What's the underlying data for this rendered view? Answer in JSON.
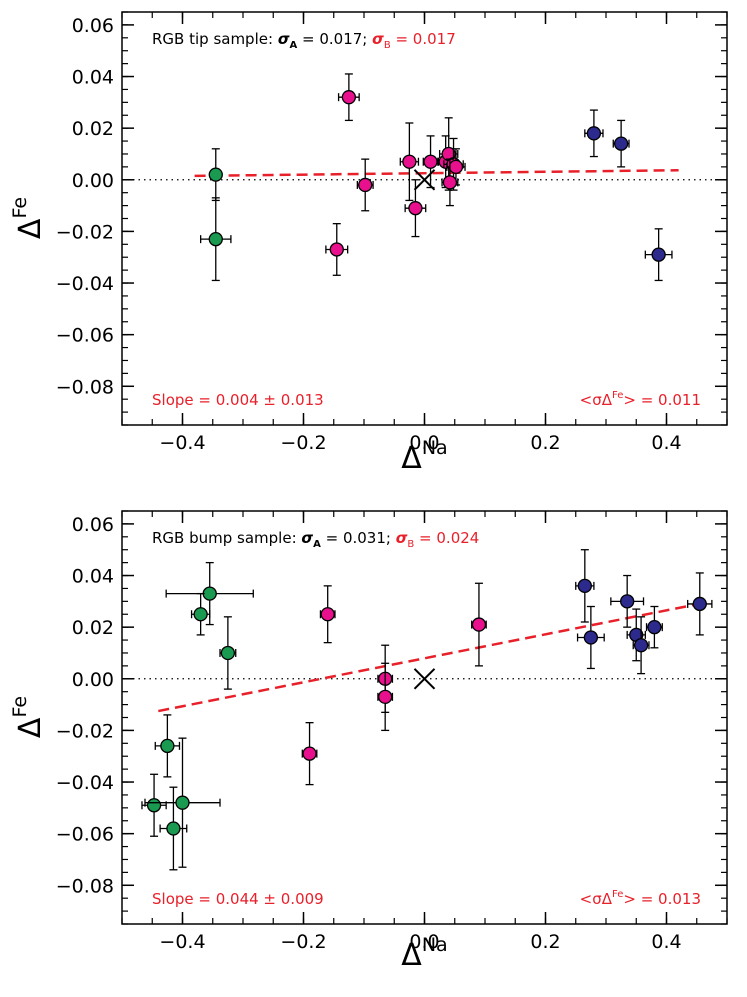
{
  "colors": {
    "magenta": "#e8108c",
    "green": "#1a9a50",
    "navy": "#2c2a8c",
    "red": "#e8202a",
    "black": "#000000"
  },
  "chart_data": [
    {
      "type": "scatter",
      "panel": "top",
      "sample_label": "RGB tip sample:",
      "sigmaA_text": "= 0.017;",
      "sigmaB_text": "= 0.017",
      "slope_label": "Slope =  0.004 ± 0.013",
      "mean_err_label": "= 0.011",
      "xlabel": "Δ^Na",
      "ylabel": "Δ^Fe",
      "xlim": [
        -0.5,
        0.5
      ],
      "ylim": [
        -0.095,
        0.065
      ],
      "x_ticks": [
        -0.4,
        -0.2,
        0.0,
        0.2,
        0.4
      ],
      "x_tick_labels": [
        "−0.4",
        "−0.2",
        "0.0",
        "0.2",
        "0.4"
      ],
      "y_ticks": [
        0.06,
        0.04,
        0.02,
        0.0,
        -0.02,
        -0.04,
        -0.06,
        -0.08
      ],
      "y_tick_labels": [
        "0.06",
        "0.04",
        "0.02",
        "0.00",
        "−0.02",
        "−0.04",
        "−0.06",
        "−0.08"
      ],
      "zero_line": 0.0,
      "fit_line": [
        [
          -0.38,
          0.0015
        ],
        [
          0.42,
          0.0037
        ]
      ],
      "origin_marker": [
        0.0,
        0.0
      ],
      "series": [
        {
          "color_key": "green",
          "points": [
            {
              "x": -0.345,
              "y": 0.002,
              "xerr": 0.007,
              "yerr": 0.01
            },
            {
              "x": -0.345,
              "y": -0.023,
              "xerr": 0.025,
              "yerr": 0.016
            }
          ]
        },
        {
          "color_key": "magenta",
          "points": [
            {
              "x": -0.125,
              "y": 0.032,
              "xerr": 0.017,
              "yerr": 0.009
            },
            {
              "x": -0.145,
              "y": -0.027,
              "xerr": 0.018,
              "yerr": 0.01
            },
            {
              "x": -0.098,
              "y": -0.002,
              "xerr": 0.013,
              "yerr": 0.01
            },
            {
              "x": -0.025,
              "y": 0.007,
              "xerr": 0.015,
              "yerr": 0.015
            },
            {
              "x": -0.015,
              "y": -0.011,
              "xerr": 0.017,
              "yerr": 0.011
            },
            {
              "x": 0.01,
              "y": 0.007,
              "xerr": 0.012,
              "yerr": 0.01
            },
            {
              "x": 0.035,
              "y": 0.007,
              "xerr": 0.012,
              "yerr": 0.01
            },
            {
              "x": 0.04,
              "y": 0.01,
              "xerr": 0.015,
              "yerr": 0.014
            },
            {
              "x": 0.048,
              "y": 0.006,
              "xerr": 0.016,
              "yerr": 0.01
            },
            {
              "x": 0.052,
              "y": 0.005,
              "xerr": 0.015,
              "yerr": 0.007
            },
            {
              "x": 0.042,
              "y": -0.001,
              "xerr": 0.013,
              "yerr": 0.009
            }
          ]
        },
        {
          "color_key": "navy",
          "points": [
            {
              "x": 0.28,
              "y": 0.018,
              "xerr": 0.015,
              "yerr": 0.009
            },
            {
              "x": 0.325,
              "y": 0.014,
              "xerr": 0.013,
              "yerr": 0.009
            },
            {
              "x": 0.387,
              "y": -0.029,
              "xerr": 0.022,
              "yerr": 0.01
            }
          ]
        }
      ]
    },
    {
      "type": "scatter",
      "panel": "bottom",
      "sample_label": "RGB bump sample:",
      "sigmaA_text": "= 0.031;",
      "sigmaB_text": "= 0.024",
      "slope_label": "Slope =  0.044 ± 0.009",
      "mean_err_label": "= 0.013",
      "xlabel": "Δ^Na",
      "ylabel": "Δ^Fe",
      "xlim": [
        -0.5,
        0.5
      ],
      "ylim": [
        -0.095,
        0.065
      ],
      "x_ticks": [
        -0.4,
        -0.2,
        0.0,
        0.2,
        0.4
      ],
      "x_tick_labels": [
        "−0.4",
        "−0.2",
        "0.0",
        "0.2",
        "0.4"
      ],
      "y_ticks": [
        0.06,
        0.04,
        0.02,
        0.0,
        -0.02,
        -0.04,
        -0.06,
        -0.08
      ],
      "y_tick_labels": [
        "0.06",
        "0.04",
        "0.02",
        "0.00",
        "−0.02",
        "−0.04",
        "−0.06",
        "−0.08"
      ],
      "zero_line": 0.0,
      "fit_line": [
        [
          -0.44,
          -0.0125
        ],
        [
          0.46,
          0.0293
        ]
      ],
      "origin_marker": [
        0.0,
        0.0
      ],
      "series": [
        {
          "color_key": "green",
          "points": [
            {
              "x": -0.355,
              "y": 0.033,
              "xerr": 0.072,
              "yerr": 0.012
            },
            {
              "x": -0.37,
              "y": 0.025,
              "xerr": 0.015,
              "yerr": 0.008
            },
            {
              "x": -0.325,
              "y": 0.01,
              "xerr": 0.013,
              "yerr": 0.014
            },
            {
              "x": -0.425,
              "y": -0.026,
              "xerr": 0.02,
              "yerr": 0.012
            },
            {
              "x": -0.447,
              "y": -0.049,
              "xerr": 0.02,
              "yerr": 0.012
            },
            {
              "x": -0.4,
              "y": -0.048,
              "xerr": 0.062,
              "yerr": 0.025
            },
            {
              "x": -0.415,
              "y": -0.058,
              "xerr": 0.022,
              "yerr": 0.016
            }
          ]
        },
        {
          "color_key": "magenta",
          "points": [
            {
              "x": -0.16,
              "y": 0.025,
              "xerr": 0.012,
              "yerr": 0.011
            },
            {
              "x": -0.19,
              "y": -0.029,
              "xerr": 0.012,
              "yerr": 0.012
            },
            {
              "x": -0.065,
              "y": 0.0,
              "xerr": 0.012,
              "yerr": 0.013
            },
            {
              "x": -0.065,
              "y": -0.007,
              "xerr": 0.012,
              "yerr": 0.013
            },
            {
              "x": 0.09,
              "y": 0.021,
              "xerr": 0.012,
              "yerr": 0.016
            }
          ]
        },
        {
          "color_key": "navy",
          "points": [
            {
              "x": 0.265,
              "y": 0.036,
              "xerr": 0.015,
              "yerr": 0.014
            },
            {
              "x": 0.275,
              "y": 0.016,
              "xerr": 0.022,
              "yerr": 0.012
            },
            {
              "x": 0.335,
              "y": 0.03,
              "xerr": 0.027,
              "yerr": 0.01
            },
            {
              "x": 0.35,
              "y": 0.017,
              "xerr": 0.015,
              "yerr": 0.01
            },
            {
              "x": 0.358,
              "y": 0.013,
              "xerr": 0.013,
              "yerr": 0.011
            },
            {
              "x": 0.38,
              "y": 0.02,
              "xerr": 0.013,
              "yerr": 0.008
            },
            {
              "x": 0.455,
              "y": 0.029,
              "xerr": 0.02,
              "yerr": 0.012
            }
          ]
        }
      ]
    }
  ]
}
